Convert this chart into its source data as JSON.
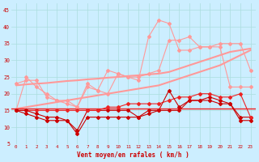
{
  "x": [
    0,
    1,
    2,
    3,
    4,
    5,
    6,
    7,
    8,
    9,
    10,
    11,
    12,
    13,
    14,
    15,
    16,
    17,
    18,
    19,
    20,
    21,
    22,
    23
  ],
  "trend1": [
    15.5,
    16.0,
    16.5,
    17.0,
    17.5,
    18.0,
    18.5,
    19.0,
    19.5,
    20.0,
    20.5,
    21.0,
    21.5,
    22.0,
    22.5,
    23.5,
    24.5,
    25.5,
    26.5,
    27.5,
    28.5,
    30.0,
    31.5,
    33.0
  ],
  "trend2": [
    22.5,
    22.8,
    23.0,
    23.2,
    23.5,
    23.8,
    24.0,
    24.3,
    24.5,
    24.8,
    25.0,
    25.3,
    25.5,
    25.8,
    26.0,
    26.5,
    27.5,
    28.5,
    29.5,
    30.5,
    31.5,
    32.5,
    33.0,
    33.5
  ],
  "line_gust_lo": [
    23,
    24,
    24,
    19,
    18,
    17,
    16,
    23,
    21,
    20,
    26,
    25,
    25,
    26,
    27,
    36,
    36,
    37,
    34,
    34,
    35,
    35,
    35,
    27
  ],
  "line_gust_hi": [
    15,
    25,
    22,
    20,
    18,
    18,
    16,
    22,
    21,
    27,
    26,
    25,
    24,
    37,
    42,
    41,
    33,
    33,
    34,
    34,
    34,
    22,
    22,
    22
  ],
  "line_wind1": [
    15,
    14,
    13,
    12,
    12,
    12,
    9,
    15,
    15,
    15,
    15,
    15,
    13,
    15,
    15,
    15,
    15,
    18,
    18,
    19,
    18,
    17,
    13,
    13
  ],
  "line_wind2": [
    15,
    15,
    15,
    15,
    15,
    15,
    15,
    15,
    15,
    16,
    16,
    17,
    17,
    17,
    17,
    18,
    19,
    19,
    20,
    20,
    19,
    19,
    20,
    13
  ],
  "line_wind3": [
    15,
    15,
    14,
    13,
    13,
    12,
    8,
    13,
    13,
    13,
    13,
    13,
    13,
    14,
    15,
    21,
    16,
    18,
    18,
    18,
    17,
    17,
    12,
    12
  ],
  "hline_val": 15.5,
  "background_color": "#cceeff",
  "grid_color": "#aadddd",
  "color_light_red": "#ff9999",
  "color_red": "#ee2222",
  "color_dark_red": "#cc0000",
  "xlabel": "Vent moyen/en rafales ( km/h )",
  "xlabel_color": "#cc0000",
  "tick_color": "#cc0000",
  "ylim": [
    5,
    47
  ],
  "xlim_min": -0.5,
  "xlim_max": 23.5,
  "yticks": [
    5,
    10,
    15,
    20,
    25,
    30,
    35,
    40,
    45
  ],
  "xticks": [
    0,
    1,
    2,
    3,
    4,
    5,
    6,
    7,
    8,
    9,
    10,
    11,
    12,
    13,
    14,
    15,
    16,
    17,
    18,
    19,
    20,
    21,
    22,
    23
  ]
}
